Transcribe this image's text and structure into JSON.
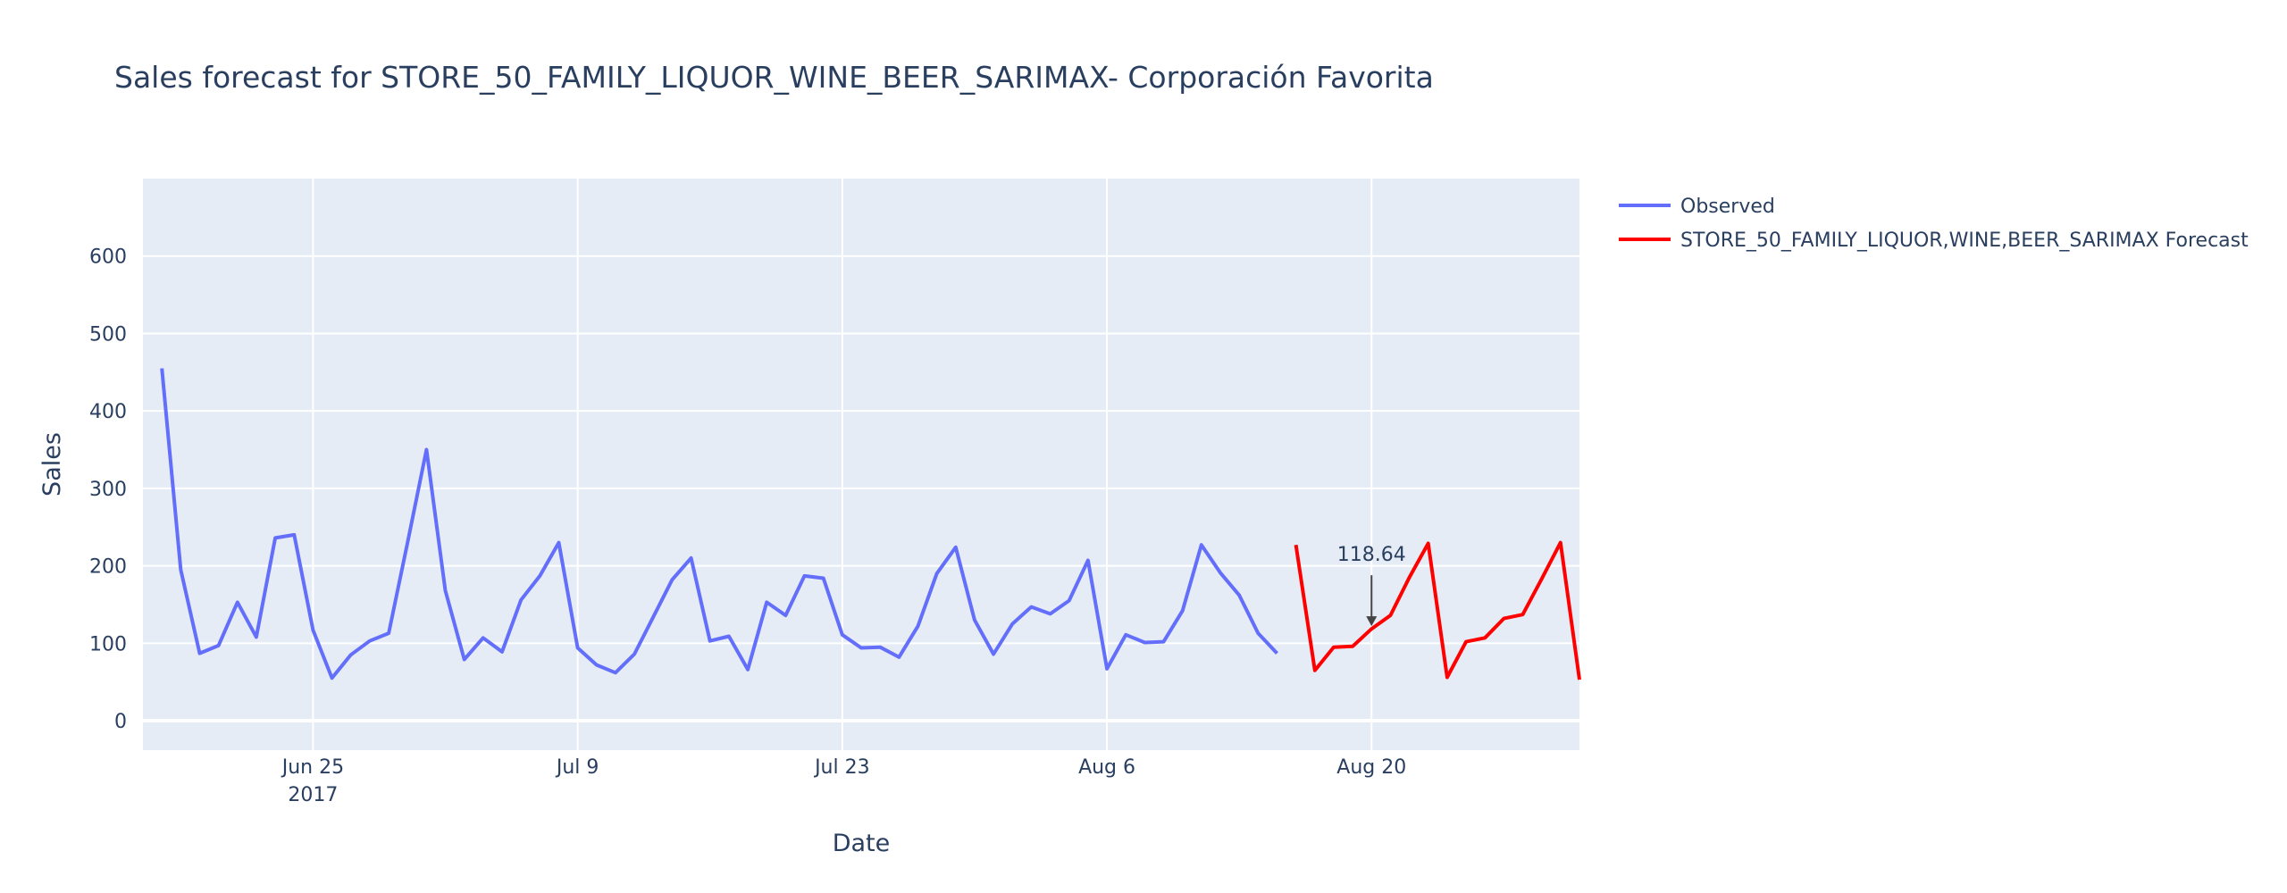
{
  "chart_data": {
    "type": "line",
    "title": "Sales forecast for STORE_50_FAMILY_LIQUOR_WINE_BEER_SARIMAX- Corporación Favorita",
    "xlabel": "Date",
    "ylabel": "Sales",
    "x_range": [
      "2017-06-16",
      "2017-08-31"
    ],
    "ylim": [
      -38,
      700
    ],
    "y_ticks": [
      0,
      100,
      200,
      300,
      400,
      500,
      600
    ],
    "x_ticks": [
      {
        "date": "2017-06-25",
        "label": "Jun 25",
        "sublabel": "2017"
      },
      {
        "date": "2017-07-09",
        "label": "Jul 9",
        "sublabel": ""
      },
      {
        "date": "2017-07-23",
        "label": "Jul 23",
        "sublabel": ""
      },
      {
        "date": "2017-08-06",
        "label": "Aug 6",
        "sublabel": ""
      },
      {
        "date": "2017-08-20",
        "label": "Aug 20",
        "sublabel": ""
      }
    ],
    "grid": true,
    "legend_position": "right",
    "series": [
      {
        "name": "Observed",
        "color": "#636efa",
        "start_date": "2017-06-17",
        "values": [
          455,
          195,
          87,
          97,
          153,
          108,
          236,
          240,
          117,
          55,
          85,
          103,
          113,
          230,
          350,
          168,
          79,
          107,
          89,
          156,
          187,
          230,
          94,
          72,
          62,
          86,
          134,
          182,
          210,
          103,
          109,
          66,
          153,
          136,
          187,
          184,
          111,
          94,
          95,
          82,
          122,
          190,
          224,
          130,
          86,
          125,
          147,
          138,
          155,
          207,
          67,
          111,
          101,
          102,
          142,
          227,
          191,
          162,
          113,
          87
        ]
      },
      {
        "name": "STORE_50_FAMILY_LIQUOR,WINE,BEER_SARIMAX Forecast",
        "color": "#ff0000",
        "start_date": "2017-08-16",
        "values": [
          227,
          65,
          95,
          96,
          118.64,
          136,
          185,
          229,
          56,
          102,
          107,
          132,
          137,
          183,
          230,
          53
        ]
      }
    ],
    "annotations": [
      {
        "date": "2017-08-20",
        "value": 118.64,
        "text": "118.64"
      }
    ]
  }
}
